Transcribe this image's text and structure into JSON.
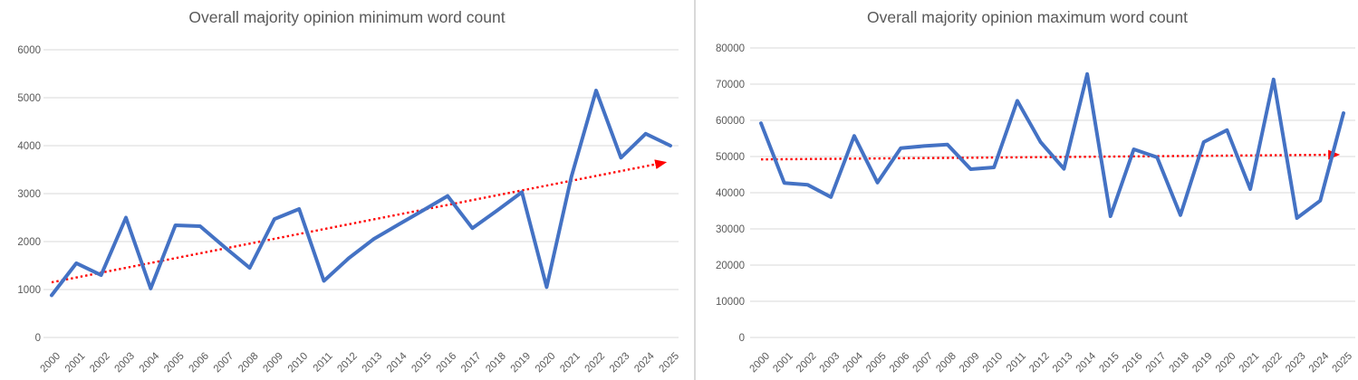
{
  "page": {
    "background": "#ffffff",
    "divider_color": "#d9d9d9"
  },
  "theme": {
    "series_color": "#4472c4",
    "trendline_color": "#ff0000",
    "gridline_color": "#d9d9d9",
    "axis_text_color": "#595959",
    "title_text_color": "#595959"
  },
  "chart_data": [
    {
      "type": "line",
      "title": "Overall majority opinion minimum word count",
      "xlabel": "",
      "ylabel": "",
      "x": [
        "2000",
        "2001",
        "2002",
        "2003",
        "2004",
        "2005",
        "2006",
        "2007",
        "2008",
        "2009",
        "2010",
        "2011",
        "2012",
        "2013",
        "2014",
        "2015",
        "2016",
        "2017",
        "2018",
        "2019",
        "2020",
        "2021",
        "2022",
        "2023",
        "2024",
        "2025"
      ],
      "values": [
        880,
        1550,
        1300,
        2500,
        1020,
        2340,
        2320,
        1880,
        1450,
        2470,
        2680,
        1180,
        1650,
        2050,
        2350,
        2650,
        2950,
        2280,
        2650,
        3030,
        1050,
        3350,
        5150,
        3750,
        4250,
        4000
      ],
      "ylim": [
        0,
        6000
      ],
      "yticks": [
        0,
        1000,
        2000,
        3000,
        4000,
        5000,
        6000
      ],
      "grid": true,
      "legend": "none",
      "line_color": "#4472c4",
      "trendline": {
        "style": "dotted",
        "color": "#ff0000",
        "arrow_end": true,
        "start_value": 1150,
        "end_value": 3650
      }
    },
    {
      "type": "line",
      "title": "Overall majority opinion maximum word count",
      "xlabel": "",
      "ylabel": "",
      "x": [
        "2000",
        "2001",
        "2002",
        "2003",
        "2004",
        "2005",
        "2006",
        "2007",
        "2008",
        "2009",
        "2010",
        "2011",
        "2012",
        "2013",
        "2014",
        "2015",
        "2016",
        "2017",
        "2018",
        "2019",
        "2020",
        "2021",
        "2022",
        "2023",
        "2024",
        "2025"
      ],
      "values": [
        59200,
        42700,
        42200,
        38800,
        55700,
        42800,
        52300,
        52900,
        53300,
        46500,
        47000,
        65400,
        54000,
        46600,
        72800,
        33500,
        52000,
        49800,
        33800,
        54000,
        57300,
        41000,
        71300,
        33000,
        37800,
        62000
      ],
      "ylim": [
        0,
        80000
      ],
      "yticks": [
        0,
        10000,
        20000,
        30000,
        40000,
        50000,
        60000,
        70000,
        80000
      ],
      "grid": true,
      "legend": "none",
      "line_color": "#4472c4",
      "trendline": {
        "style": "dotted",
        "color": "#ff0000",
        "arrow_end": true,
        "start_value": 49200,
        "end_value": 50500
      }
    }
  ]
}
